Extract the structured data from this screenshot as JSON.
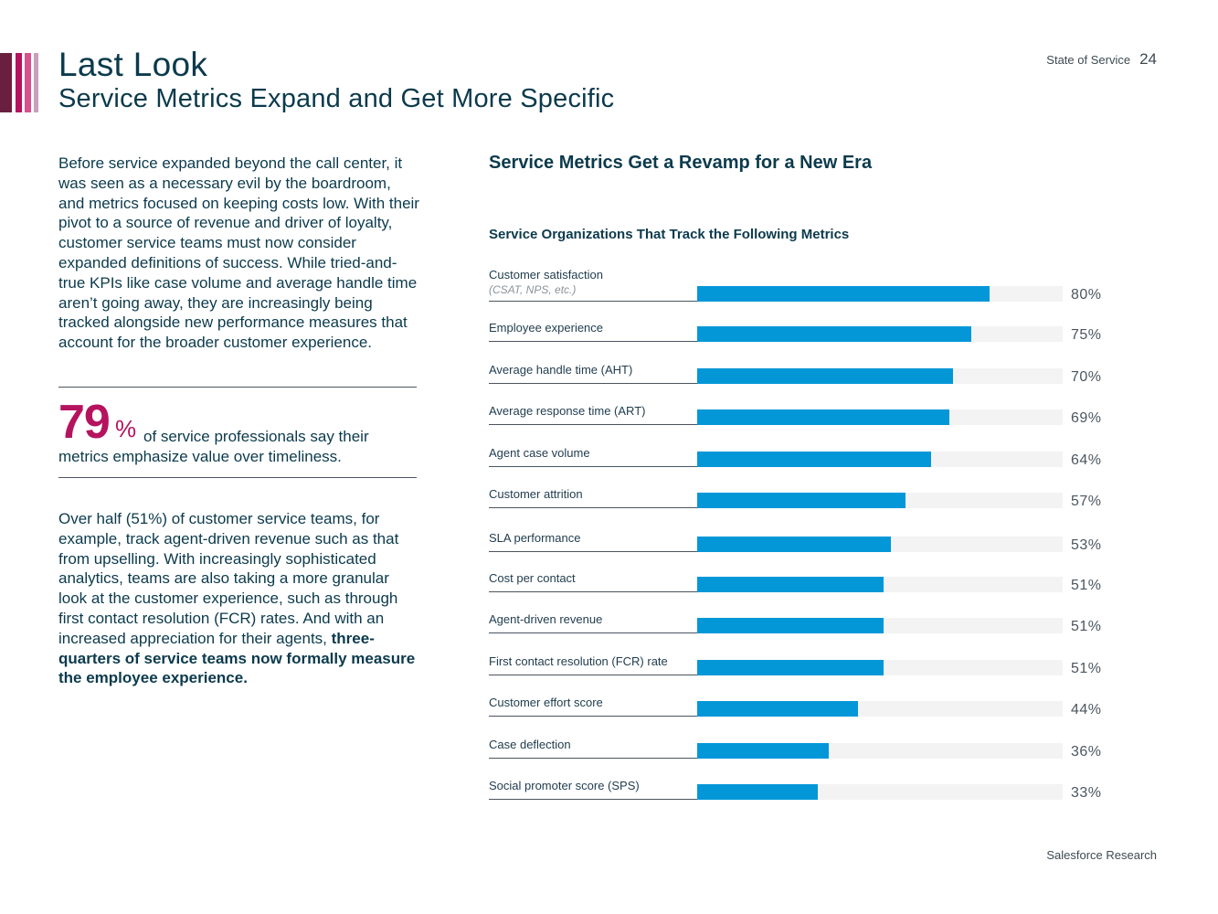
{
  "header": {
    "title": "Last Look",
    "subtitle": "Service Metrics Expand and Get More Specific",
    "report_name": "State of Service",
    "page_number": "24"
  },
  "brand_colors": [
    "#6b1f3f",
    "#b5135e",
    "#d8508c",
    "#c9a0b8"
  ],
  "left": {
    "paragraph1": "Before service expanded beyond the call center, it was seen as a necessary evil by the boardroom, and metrics focused on keeping costs low. With their pivot to a source of revenue and driver of loyalty, customer service teams must now consider expanded definitions of success. While tried-and-true KPIs like case volume and average handle time aren’t going away, they are increasingly being tracked alongside new performance measures that account for the broader customer experience.",
    "stat": {
      "number": "79",
      "percent_sign": "%",
      "text_line1": "of service professionals say their",
      "text_line2": "metrics emphasize value over timeliness."
    },
    "paragraph2": "Over half (51%) of customer service teams, for example, track agent-driven revenue such as that from upselling. With increasingly sophisticated analytics, teams are also taking a more granular look at the customer experience, such as through first contact resolution (FCR) rates. And with an increased appreciation for their agents, ",
    "paragraph2_bold": "three-quarters of service teams now formally measure the employee experience."
  },
  "chart_data": {
    "type": "bar",
    "orientation": "horizontal",
    "title": "Service Metrics Get a Revamp for a New Era",
    "subtitle": "Service Organizations That Track the Following Metrics",
    "categories": [
      "Customer satisfaction",
      "Employee experience",
      "Average handle time (AHT)",
      "Average response time (ART)",
      "Agent case volume",
      "Customer attrition",
      "SLA performance",
      "Cost per contact",
      "Agent-driven revenue",
      "First contact resolution (FCR) rate",
      "Customer effort score",
      "Case deflection",
      "Social promoter score (SPS)"
    ],
    "category_notes": [
      "(CSAT, NPS, etc.)",
      "",
      "",
      "",
      "",
      "",
      "",
      "",
      "",
      "",
      "",
      "",
      ""
    ],
    "values": [
      80,
      75,
      70,
      69,
      64,
      57,
      53,
      51,
      51,
      51,
      44,
      36,
      33
    ],
    "value_labels": [
      "80%",
      "75%",
      "70%",
      "69%",
      "64%",
      "57%",
      "53%",
      "51%",
      "51%",
      "51%",
      "44%",
      "36%",
      "33%"
    ],
    "xlim": [
      0,
      100
    ],
    "bar_color": "#0497d8",
    "track_color": "#f3f3f4"
  },
  "footer": {
    "source": "Salesforce Research"
  }
}
